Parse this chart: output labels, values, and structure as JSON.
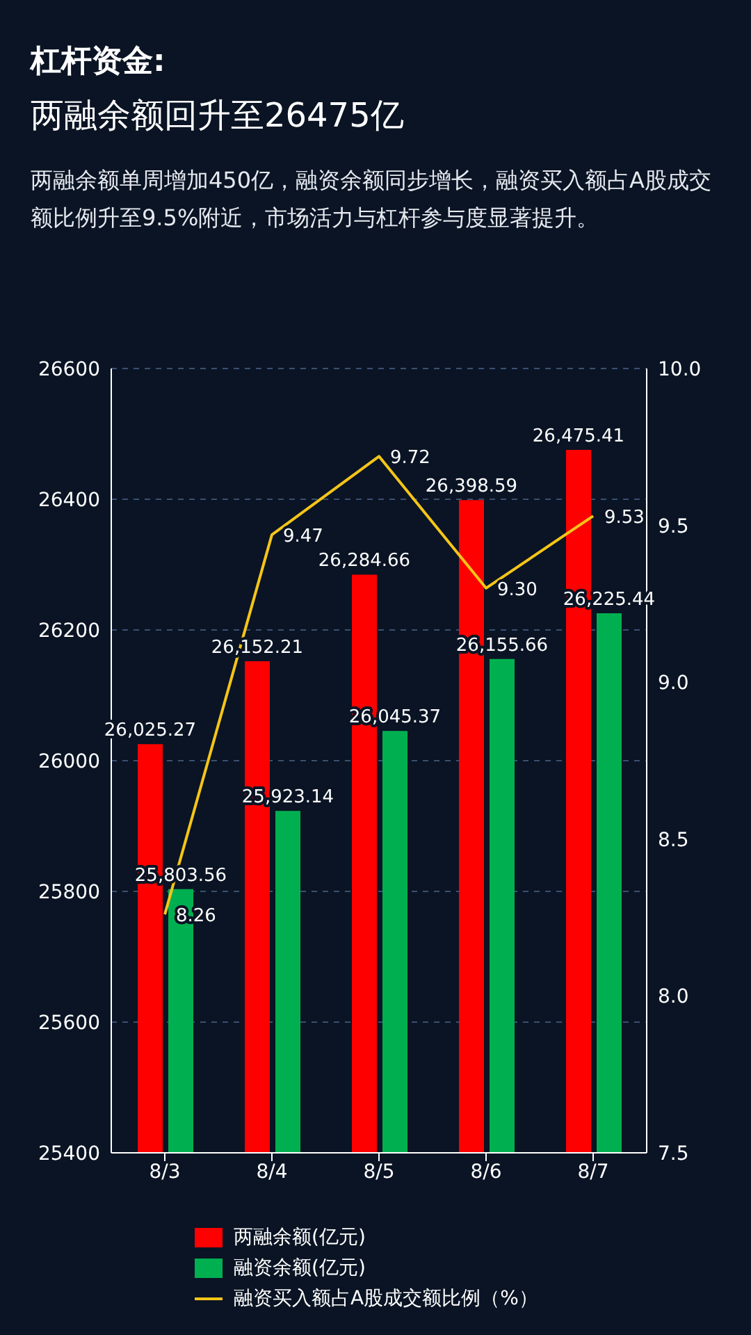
{
  "chart_data": {
    "type": "bar",
    "title": "杠杆资金:\n两融余额回升至26475亿",
    "subtitle": "两融余额单周增加450亿，融资余额同步增长，融资买入额占A股成交额比例升至9.5%附近，市场活力与杠杆参与度显著提升。",
    "categories": [
      "8/3",
      "8/4",
      "8/5",
      "8/6",
      "8/7"
    ],
    "series": [
      {
        "name": "两融余额(亿元)",
        "color": "#ff0000",
        "values": [
          26025.27,
          26152.21,
          26284.66,
          26398.59,
          26475.41
        ],
        "value_labels": [
          "26,025.27",
          "26,152.21",
          "26,284.66",
          "26,398.59",
          "26,475.41"
        ]
      },
      {
        "name": "融资余额(亿元)",
        "color": "#00b050",
        "values": [
          25803.56,
          25923.14,
          26045.37,
          26155.66,
          26225.44
        ],
        "value_labels": [
          "25,803.56",
          "25,923.14",
          "26,045.37",
          "26,155.66",
          "26,225.44"
        ]
      },
      {
        "name": "融资买入额占A股成交额比例（%）",
        "type": "line",
        "axis": "y2",
        "color": "#f5c518",
        "values": [
          8.26,
          9.47,
          9.72,
          9.3,
          9.53
        ],
        "value_labels": [
          "8.26",
          "9.47",
          "9.72",
          "9.30",
          "9.53"
        ]
      }
    ],
    "ylim": [
      25400,
      26600
    ],
    "yticks": [
      25400,
      25600,
      25800,
      26000,
      26200,
      26400,
      26600
    ],
    "y2lim": [
      7.5,
      10.0
    ],
    "y2ticks": [
      7.5,
      {
        "value": 8.0,
        "label": "8.0"
      },
      8.5,
      {
        "value": 9.0,
        "label": "9.0"
      },
      9.5,
      {
        "value": 10.0,
        "label": "10.0"
      }
    ],
    "grid": "y",
    "legend": "bottom",
    "marker": "none"
  }
}
